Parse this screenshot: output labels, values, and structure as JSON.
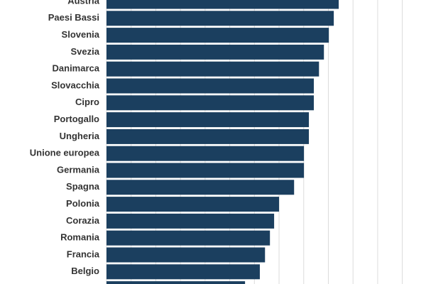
{
  "chart_data": {
    "type": "barh",
    "categories": [
      "Austria",
      "Paesi Bassi",
      "Slovenia",
      "Svezia",
      "Danimarca",
      "Slovacchia",
      "Cipro",
      "Portogallo",
      "Ungheria",
      "Unione europea",
      "Germania",
      "Spagna",
      "Polonia",
      "Corazia",
      "Romania",
      "Francia",
      "Belgio",
      null
    ],
    "values": [
      9.42,
      9.22,
      9.02,
      8.82,
      8.62,
      8.41,
      8.41,
      8.21,
      8.21,
      8.01,
      8.01,
      7.61,
      7.0,
      6.8,
      6.63,
      6.43,
      6.22,
      5.62
    ],
    "color": "#1b3f5f",
    "xlim": [
      0,
      12.5
    ],
    "xticks": [
      0,
      1,
      2,
      3,
      4,
      5,
      6,
      7,
      8,
      9,
      10,
      11,
      12
    ],
    "grid": true
  }
}
